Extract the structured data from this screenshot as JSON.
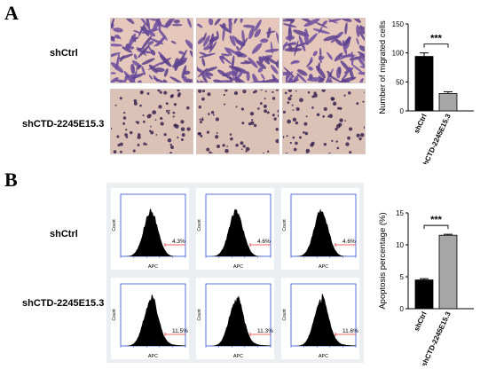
{
  "panels": [
    {
      "letter": "A",
      "rows": [
        "shCtrl",
        "shCTD-2245E15.3"
      ],
      "chart_data": {
        "type": "bar",
        "categories": [
          "shCtrl",
          "shCTD-2245E15.3"
        ],
        "values": [
          94,
          30
        ],
        "errors": [
          6,
          3
        ],
        "colors": [
          "#000000",
          "#a6a6a6"
        ],
        "ylabel": "Number of migrated cells",
        "ylim": [
          0,
          150
        ],
        "yticks": [
          "0",
          "50",
          "100",
          "150"
        ],
        "significance": "***"
      }
    },
    {
      "letter": "B",
      "rows": [
        "shCtrl",
        "shCTD-2245E15.3"
      ],
      "flow_percentages": [
        [
          "4.3%",
          "4.6%",
          "4.6%"
        ],
        [
          "11.5%",
          "11.3%",
          "11.6%"
        ]
      ],
      "flow_xlabel": "APC",
      "flow_ylabel": "Count",
      "chart_data": {
        "type": "bar",
        "categories": [
          "shCtrl",
          "shCTD-2245E15.3"
        ],
        "values": [
          4.5,
          11.5
        ],
        "errors": [
          0.2,
          0.15
        ],
        "colors": [
          "#000000",
          "#a6a6a6"
        ],
        "ylabel": "Apoptosis percentage (%)",
        "ylim": [
          0,
          15
        ],
        "yticks": [
          "0",
          "5",
          "10",
          "15"
        ],
        "significance": "***"
      }
    }
  ]
}
